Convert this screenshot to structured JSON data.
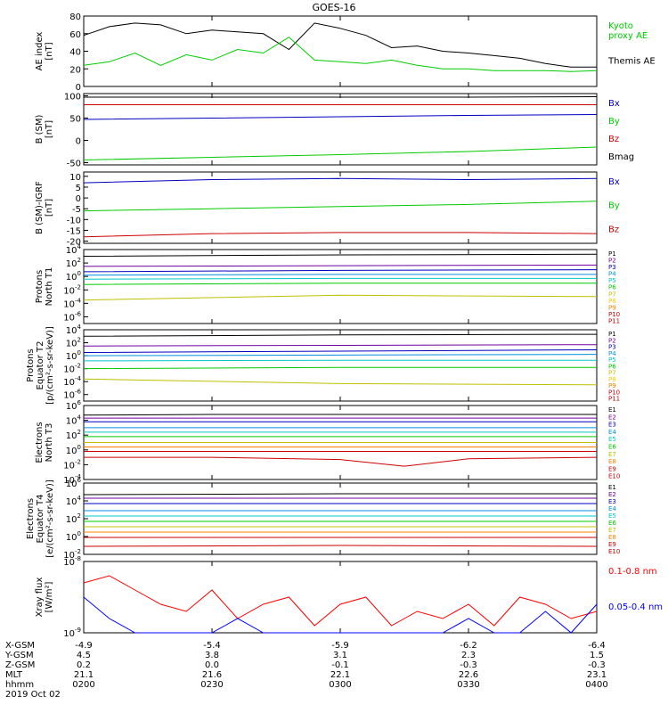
{
  "title": "GOES-16",
  "date_label": "2019 Oct 02",
  "chart_data": [
    {
      "type": "line",
      "ylabel": "AE index\n[nT]",
      "ylim": [
        0,
        80
      ],
      "yticks": [
        "0",
        "20",
        "40",
        "60",
        "80"
      ],
      "x": [
        0,
        6,
        12,
        18,
        24,
        30,
        36,
        42,
        48,
        54,
        60,
        66,
        72,
        78,
        84,
        90,
        96,
        102,
        108,
        114,
        120
      ],
      "series": [
        {
          "name": "Themis AE",
          "color": "#000000",
          "values": [
            58,
            68,
            72,
            70,
            60,
            64,
            62,
            60,
            42,
            72,
            66,
            58,
            44,
            46,
            40,
            38,
            35,
            32,
            26,
            22,
            22
          ]
        },
        {
          "name": "Kyoto proxy AE",
          "color": "#00cc00",
          "values": [
            24,
            28,
            38,
            24,
            36,
            30,
            42,
            38,
            56,
            30,
            28,
            26,
            30,
            24,
            20,
            20,
            18,
            18,
            18,
            17,
            18
          ]
        }
      ],
      "legend": [
        {
          "label": "Kyoto\nproxy AE",
          "color": "#00cc00"
        },
        {
          "label": "Themis AE",
          "color": "#000000"
        }
      ]
    },
    {
      "type": "line",
      "ylabel": "B (SM)\n[nT]",
      "ylim": [
        -55,
        105
      ],
      "yticks": [
        "-50",
        "0",
        "50",
        "100"
      ],
      "x": [
        0,
        30,
        60,
        90,
        120
      ],
      "series": [
        {
          "name": "Bx",
          "color": "#0000c0",
          "values": [
            47,
            50,
            53,
            56,
            58
          ]
        },
        {
          "name": "By",
          "color": "#00cc00",
          "values": [
            -44,
            -38,
            -32,
            -25,
            -15
          ]
        },
        {
          "name": "Bz",
          "color": "#cc0000",
          "values": [
            80,
            80,
            80,
            80,
            80
          ]
        },
        {
          "name": "Bmag",
          "color": "#000000",
          "values": [
            97,
            97,
            97,
            97,
            98
          ]
        }
      ],
      "legend": [
        {
          "label": "Bx",
          "color": "#0000c0"
        },
        {
          "label": "By",
          "color": "#00cc00"
        },
        {
          "label": "Bz",
          "color": "#cc0000"
        },
        {
          "label": "Bmag",
          "color": "#000000"
        }
      ]
    },
    {
      "type": "line",
      "ylabel": "B (SM)-IGRF\n[nT]",
      "ylim": [
        -21,
        12
      ],
      "yticks": [
        "-20",
        "-15",
        "-10",
        "-5",
        "0",
        "5",
        "10"
      ],
      "x": [
        0,
        30,
        60,
        90,
        120
      ],
      "series": [
        {
          "name": "Bx",
          "color": "#0000c0",
          "values": [
            7,
            8.5,
            9,
            8.5,
            9
          ]
        },
        {
          "name": "By",
          "color": "#00cc00",
          "values": [
            -6,
            -5,
            -4,
            -3,
            -1.5
          ]
        },
        {
          "name": "Bz",
          "color": "#cc0000",
          "values": [
            -18,
            -16.5,
            -16,
            -16,
            -16.5
          ]
        }
      ],
      "legend": [
        {
          "label": "Bx",
          "color": "#0000c0"
        },
        {
          "label": "By",
          "color": "#00cc00"
        },
        {
          "label": "Bz",
          "color": "#cc0000"
        }
      ]
    },
    {
      "type": "line",
      "log": true,
      "ylabel": "Protons\nNorth T1",
      "ylim": [
        -7,
        4
      ],
      "yticks_exp": [
        4,
        2,
        0,
        -2,
        -4,
        -6
      ],
      "x": [
        0,
        60,
        120
      ],
      "series": [
        {
          "name": "P1",
          "color": "#000000",
          "values": [
            3.0,
            3.2,
            3.3
          ]
        },
        {
          "name": "P2",
          "color": "#7000a0",
          "values": [
            1.5,
            1.6,
            1.7
          ]
        },
        {
          "name": "P3",
          "color": "#0000c0",
          "values": [
            0.7,
            0.9,
            1.0
          ]
        },
        {
          "name": "P4",
          "color": "#0090e0",
          "values": [
            0.2,
            0.3,
            0.3
          ]
        },
        {
          "name": "P5",
          "color": "#00c8c8",
          "values": [
            -0.4,
            -0.3,
            -0.3
          ]
        },
        {
          "name": "P6",
          "color": "#00cc00",
          "values": [
            -1.2,
            -1.0,
            -1.0
          ]
        },
        {
          "name": "P7",
          "color": "#c0c000",
          "values": [
            -3.5,
            -2.8,
            -3.0
          ]
        }
      ],
      "legend": [
        {
          "label": "P1",
          "color": "#000000"
        },
        {
          "label": "P2",
          "color": "#7000a0"
        },
        {
          "label": "P3",
          "color": "#0000c0"
        },
        {
          "label": "P4",
          "color": "#0090e0"
        },
        {
          "label": "P5",
          "color": "#00c8c8"
        },
        {
          "label": "P6",
          "color": "#00cc00"
        },
        {
          "label": "P7",
          "color": "#c0c000"
        },
        {
          "label": "P8",
          "color": "#ffcc00"
        },
        {
          "label": "P9",
          "color": "#ff8000"
        },
        {
          "label": "P10",
          "color": "#cc0000"
        },
        {
          "label": "P11",
          "color": "#cc0000"
        }
      ]
    },
    {
      "type": "line",
      "log": true,
      "ylabel": "Protons\nEquator T2\n[p/(cm²-s-sr-keV)]",
      "ylim": [
        -7,
        4
      ],
      "yticks_exp": [
        4,
        2,
        0,
        -2,
        -4,
        -6
      ],
      "x": [
        0,
        60,
        120
      ],
      "series": [
        {
          "name": "P1",
          "color": "#000000",
          "values": [
            3.0,
            3.2,
            3.3
          ]
        },
        {
          "name": "P2",
          "color": "#7000a0",
          "values": [
            1.5,
            1.6,
            1.7
          ]
        },
        {
          "name": "P3",
          "color": "#0000c0",
          "values": [
            0.5,
            0.7,
            0.9
          ]
        },
        {
          "name": "P4",
          "color": "#0090e0",
          "values": [
            0.0,
            0.1,
            0.2
          ]
        },
        {
          "name": "P5",
          "color": "#00c8c8",
          "values": [
            -0.8,
            -0.7,
            -0.7
          ]
        },
        {
          "name": "P6",
          "color": "#00cc00",
          "values": [
            -2.0,
            -1.8,
            -1.8
          ]
        },
        {
          "name": "P7",
          "color": "#c0c000",
          "values": [
            -3.6,
            -4.3,
            -4.5
          ]
        }
      ],
      "legend": [
        {
          "label": "P1",
          "color": "#000000"
        },
        {
          "label": "P2",
          "color": "#7000a0"
        },
        {
          "label": "P3",
          "color": "#0000c0"
        },
        {
          "label": "P4",
          "color": "#0090e0"
        },
        {
          "label": "P5",
          "color": "#00c8c8"
        },
        {
          "label": "P6",
          "color": "#00cc00"
        },
        {
          "label": "P7",
          "color": "#c0c000"
        },
        {
          "label": "P8",
          "color": "#ffcc00"
        },
        {
          "label": "P9",
          "color": "#ff8000"
        },
        {
          "label": "P10",
          "color": "#cc0000"
        },
        {
          "label": "P11",
          "color": "#cc0000"
        }
      ]
    },
    {
      "type": "line",
      "log": true,
      "ylabel": "Electrons\nNorth T3",
      "ylim": [
        -4,
        6
      ],
      "yticks_exp": [
        6,
        4,
        2,
        0,
        -2,
        -4
      ],
      "x": [
        0,
        30,
        60,
        75,
        90,
        120
      ],
      "series": [
        {
          "name": "E1",
          "color": "#000000",
          "values": [
            4.7,
            4.8,
            4.8,
            4.8,
            4.8,
            4.8
          ]
        },
        {
          "name": "E2",
          "color": "#7000a0",
          "values": [
            4.3,
            4.3,
            4.3,
            4.3,
            4.3,
            4.3
          ]
        },
        {
          "name": "E3",
          "color": "#0000c0",
          "values": [
            3.8,
            3.8,
            3.8,
            3.8,
            3.8,
            3.8
          ]
        },
        {
          "name": "E4",
          "color": "#0090e0",
          "values": [
            3.0,
            3.0,
            3.0,
            3.0,
            3.0,
            3.0
          ]
        },
        {
          "name": "E5",
          "color": "#00c8c8",
          "values": [
            2.4,
            2.4,
            2.4,
            2.4,
            2.4,
            2.4
          ]
        },
        {
          "name": "E6",
          "color": "#00cc00",
          "values": [
            1.8,
            1.8,
            1.8,
            1.8,
            1.8,
            1.8
          ]
        },
        {
          "name": "E7",
          "color": "#c0c000",
          "values": [
            1.0,
            1.0,
            1.0,
            1.0,
            1.0,
            1.0
          ]
        },
        {
          "name": "E8",
          "color": "#ff8000",
          "values": [
            0.4,
            0.4,
            0.4,
            0.4,
            0.4,
            0.4
          ]
        },
        {
          "name": "E9",
          "color": "#cc0000",
          "values": [
            -0.2,
            -0.2,
            -0.2,
            -0.2,
            -0.2,
            -0.2
          ]
        },
        {
          "name": "E10",
          "color": "#cc0000",
          "values": [
            -1.0,
            -1.0,
            -1.3,
            -2.2,
            -1.2,
            -1.0
          ]
        }
      ],
      "legend": [
        {
          "label": "E1",
          "color": "#000000"
        },
        {
          "label": "E2",
          "color": "#7000a0"
        },
        {
          "label": "E3",
          "color": "#0000c0"
        },
        {
          "label": "E4",
          "color": "#0090e0"
        },
        {
          "label": "E5",
          "color": "#00c8c8"
        },
        {
          "label": "E6",
          "color": "#00cc00"
        },
        {
          "label": "E7",
          "color": "#c0c000"
        },
        {
          "label": "E8",
          "color": "#ff8000"
        },
        {
          "label": "E9",
          "color": "#cc0000"
        },
        {
          "label": "E10",
          "color": "#cc0000"
        }
      ]
    },
    {
      "type": "line",
      "log": true,
      "ylabel": "Electrons\nEquator T4\n[e/(cm²-s-sr-keV)]",
      "ylim": [
        -2,
        6
      ],
      "yticks_exp": [
        6,
        4,
        2,
        0,
        -2
      ],
      "x": [
        0,
        60,
        120
      ],
      "series": [
        {
          "name": "E1",
          "color": "#000000",
          "values": [
            4.7,
            4.8,
            4.8
          ]
        },
        {
          "name": "E2",
          "color": "#7000a0",
          "values": [
            4.3,
            4.3,
            4.3
          ]
        },
        {
          "name": "E3",
          "color": "#0000c0",
          "values": [
            3.7,
            3.7,
            3.7
          ]
        },
        {
          "name": "E4",
          "color": "#0090e0",
          "values": [
            2.9,
            2.9,
            2.9
          ]
        },
        {
          "name": "E5",
          "color": "#00c8c8",
          "values": [
            2.3,
            2.3,
            2.3
          ]
        },
        {
          "name": "E6",
          "color": "#00cc00",
          "values": [
            1.7,
            1.7,
            1.7
          ]
        },
        {
          "name": "E7",
          "color": "#c0c000",
          "values": [
            1.1,
            1.1,
            1.1
          ]
        },
        {
          "name": "E8",
          "color": "#ff8000",
          "values": [
            0.5,
            0.5,
            0.5
          ]
        },
        {
          "name": "E9",
          "color": "#cc0000",
          "values": [
            -0.1,
            -0.1,
            -0.1
          ]
        },
        {
          "name": "E10",
          "color": "#cc0000",
          "values": [
            -1.1,
            -1.0,
            -1.1
          ]
        }
      ],
      "legend": [
        {
          "label": "E1",
          "color": "#000000"
        },
        {
          "label": "E2",
          "color": "#7000a0"
        },
        {
          "label": "E3",
          "color": "#0000c0"
        },
        {
          "label": "E4",
          "color": "#0090e0"
        },
        {
          "label": "E5",
          "color": "#00c8c8"
        },
        {
          "label": "E6",
          "color": "#00cc00"
        },
        {
          "label": "E7",
          "color": "#c0c000"
        },
        {
          "label": "E8",
          "color": "#ff8000"
        },
        {
          "label": "E9",
          "color": "#cc0000"
        },
        {
          "label": "E10",
          "color": "#cc0000"
        }
      ]
    },
    {
      "type": "line",
      "log": true,
      "ylabel": "Xray flux\n[W/m²]",
      "ylim": [
        -9,
        -8
      ],
      "yticks_exp": [
        -8,
        -9
      ],
      "x": [
        0,
        6,
        12,
        18,
        24,
        30,
        36,
        42,
        48,
        54,
        60,
        66,
        72,
        78,
        84,
        90,
        96,
        102,
        108,
        114,
        120
      ],
      "series": [
        {
          "name": "0.1-0.8 nm",
          "color": "#ff0000",
          "values": [
            -8.3,
            -8.2,
            -8.4,
            -8.6,
            -8.7,
            -8.4,
            -8.8,
            -8.6,
            -8.5,
            -8.9,
            -8.6,
            -8.5,
            -8.9,
            -8.7,
            -8.8,
            -8.6,
            -8.9,
            -8.5,
            -8.6,
            -8.8,
            -8.7
          ]
        },
        {
          "name": "0.05-0.4 nm",
          "color": "#0000ff",
          "values": [
            -8.5,
            -8.8,
            -9.0,
            -9.0,
            -9.0,
            -9.0,
            -8.8,
            -9.0,
            -9.0,
            -9.0,
            -9.0,
            -9.0,
            -9.0,
            -9.0,
            -9.0,
            -8.8,
            -9.0,
            -9.0,
            -8.7,
            -9.0,
            -8.6
          ]
        }
      ],
      "legend": [
        {
          "label": "0.1-0.8 nm",
          "color": "#ff0000"
        },
        {
          "label": "0.05-0.4 nm",
          "color": "#0000ff"
        }
      ]
    }
  ],
  "xaxis": {
    "x_ticks": [
      0,
      30,
      60,
      90,
      120
    ],
    "rows": [
      {
        "label": "X-GSM",
        "values": [
          "-4.9",
          "-5.4",
          "-5.9",
          "-6.2",
          "-6.4"
        ]
      },
      {
        "label": "Y-GSM",
        "values": [
          "4.5",
          "3.8",
          "3.1",
          "2.3",
          "1.5"
        ]
      },
      {
        "label": "Z-GSM",
        "values": [
          "0.2",
          "0.0",
          "-0.1",
          "-0.3",
          "-0.3"
        ]
      },
      {
        "label": "MLT",
        "values": [
          "21.1",
          "21.6",
          "22.1",
          "22.6",
          "23.1"
        ]
      },
      {
        "label": "hhmm",
        "values": [
          "0200",
          "0230",
          "0300",
          "0330",
          "0400"
        ]
      }
    ]
  }
}
